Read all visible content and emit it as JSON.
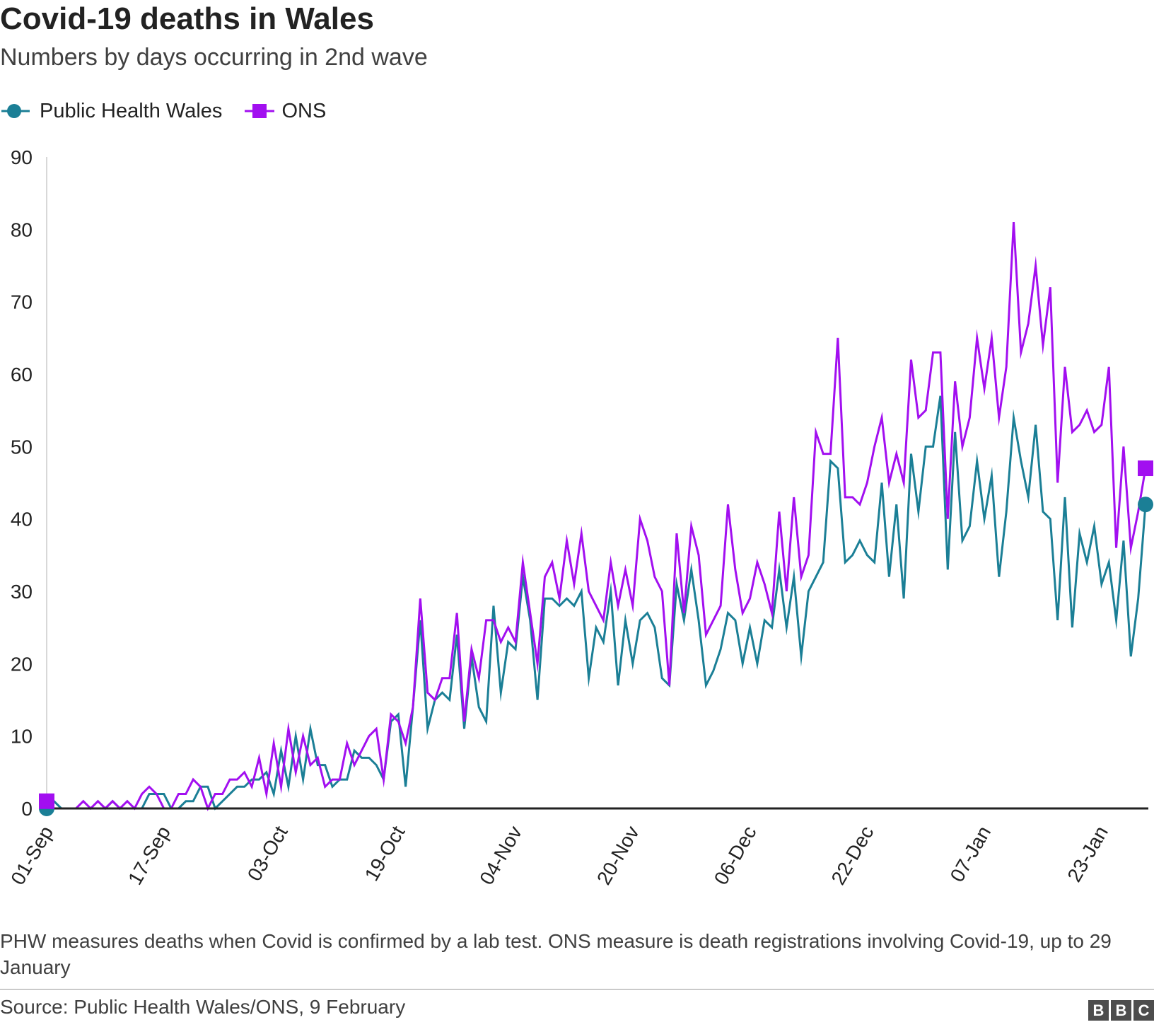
{
  "title": "Covid-19 deaths in Wales",
  "subtitle": "Numbers by days occurring in 2nd wave",
  "note": "PHW measures deaths when Covid is confirmed by a lab test. ONS measure is death registrations involving Covid-19, up to 29 January",
  "source": "Source: Public Health Wales/ONS, 9 February",
  "logo": [
    "B",
    "B",
    "C"
  ],
  "colors": {
    "phw": "#1b7f96",
    "ons": "#a20ff0",
    "axis": "#222222",
    "grid": "#cccccc"
  },
  "legend": [
    {
      "label": "Public Health Wales",
      "marker": "circle",
      "color_key": "phw"
    },
    {
      "label": "ONS",
      "marker": "square",
      "color_key": "ons"
    }
  ],
  "chart_data": {
    "type": "line",
    "title": "Covid-19 deaths in Wales",
    "subtitle": "Numbers by days occurring in 2nd wave",
    "xlabel": "",
    "ylabel": "",
    "ylim": [
      0,
      90
    ],
    "yticks": [
      0,
      10,
      20,
      30,
      40,
      50,
      60,
      70,
      80,
      90
    ],
    "x_start": "01-Sep",
    "x_step_days": 1,
    "xticks": [
      {
        "label": "01-Sep",
        "index": 0
      },
      {
        "label": "17-Sep",
        "index": 16
      },
      {
        "label": "03-Oct",
        "index": 32
      },
      {
        "label": "19-Oct",
        "index": 48
      },
      {
        "label": "04-Nov",
        "index": 64
      },
      {
        "label": "20-Nov",
        "index": 80
      },
      {
        "label": "06-Dec",
        "index": 96
      },
      {
        "label": "22-Dec",
        "index": 112
      },
      {
        "label": "07-Jan",
        "index": 128
      },
      {
        "label": "23-Jan",
        "index": 144
      }
    ],
    "series": [
      {
        "name": "Public Health Wales",
        "color_key": "phw",
        "marker": "circle",
        "values": [
          0,
          1,
          0,
          0,
          0,
          0,
          0,
          0,
          0,
          1,
          0,
          0,
          0,
          0,
          2,
          2,
          2,
          0,
          0,
          1,
          1,
          3,
          3,
          0,
          1,
          2,
          3,
          3,
          4,
          4,
          5,
          2,
          8,
          3,
          10,
          4,
          11,
          6,
          6,
          3,
          4,
          4,
          8,
          7,
          7,
          6,
          4,
          12,
          13,
          3,
          14,
          26,
          11,
          15,
          16,
          15,
          24,
          11,
          21,
          14,
          12,
          28,
          16,
          23,
          22,
          32,
          26,
          15,
          29,
          29,
          28,
          29,
          28,
          30,
          18,
          25,
          23,
          30,
          17,
          26,
          20,
          26,
          27,
          25,
          18,
          17,
          31,
          26,
          33,
          26,
          17,
          19,
          22,
          27,
          26,
          20,
          25,
          20,
          26,
          25,
          33,
          25,
          32,
          21,
          30,
          32,
          34,
          48,
          47,
          34,
          35,
          37,
          35,
          34,
          45,
          32,
          42,
          29,
          49,
          41,
          50,
          50,
          57,
          33,
          52,
          37,
          39,
          48,
          40,
          46,
          32,
          41,
          54,
          48,
          43,
          53,
          41,
          40,
          26,
          43,
          25,
          38,
          34,
          39,
          31,
          34,
          26,
          37,
          21,
          29,
          42
        ]
      },
      {
        "name": "ONS",
        "color_key": "ons",
        "marker": "square",
        "values": [
          1,
          0,
          0,
          0,
          0,
          1,
          0,
          1,
          0,
          1,
          0,
          1,
          0,
          2,
          3,
          2,
          0,
          0,
          2,
          2,
          4,
          3,
          0,
          2,
          2,
          4,
          4,
          5,
          3,
          7,
          2,
          9,
          3,
          11,
          5,
          10,
          6,
          7,
          3,
          4,
          4,
          9,
          6,
          8,
          10,
          11,
          4,
          13,
          12,
          9,
          14,
          29,
          16,
          15,
          18,
          18,
          27,
          12,
          22,
          18,
          26,
          26,
          23,
          25,
          23,
          34,
          27,
          20,
          32,
          34,
          29,
          37,
          31,
          38,
          30,
          28,
          26,
          34,
          28,
          33,
          28,
          40,
          37,
          32,
          30,
          17,
          38,
          27,
          39,
          35,
          24,
          26,
          28,
          42,
          33,
          27,
          29,
          34,
          31,
          27,
          41,
          30,
          43,
          32,
          35,
          52,
          49,
          49,
          65,
          43,
          43,
          42,
          45,
          50,
          54,
          45,
          49,
          45,
          62,
          54,
          55,
          63,
          63,
          40,
          59,
          50,
          54,
          65,
          58,
          65,
          54,
          61,
          81,
          63,
          67,
          75,
          64,
          72,
          45,
          61,
          52,
          53,
          55,
          52,
          53,
          61,
          36,
          50,
          36,
          41,
          47
        ]
      }
    ]
  }
}
